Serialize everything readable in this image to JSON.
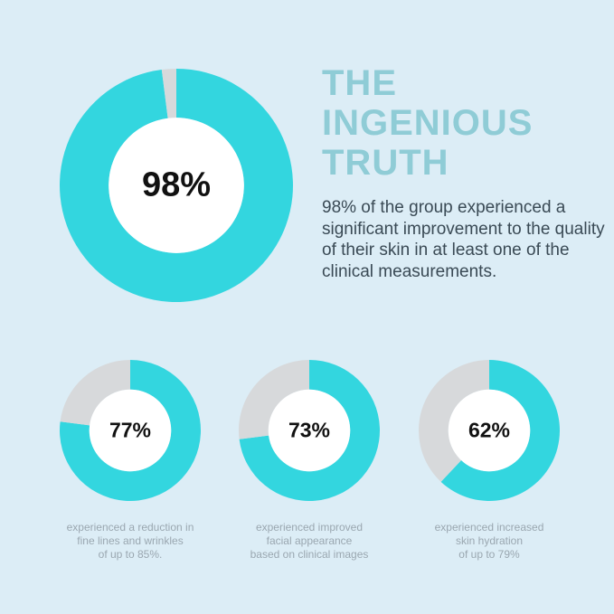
{
  "headline": {
    "lines": [
      "THE",
      "INGENIOUS",
      "TRUTH"
    ]
  },
  "description": "98% of the group experienced a significant improvement to the quality of their skin in at least one of the clinical measurements.",
  "colors": {
    "filled": "#33d6df",
    "remainder": "#d7d9db",
    "center": "#ffffff",
    "background": "#dcedf6",
    "headline": "#8fccd6"
  },
  "chart_data": [
    {
      "type": "pie",
      "style": "donut",
      "slices": [
        {
          "value": 98,
          "color": "#33d6df"
        },
        {
          "value": 2,
          "color": "#d7d9db"
        }
      ],
      "label": "98%"
    },
    {
      "type": "pie",
      "style": "donut",
      "slices": [
        {
          "value": 77,
          "color": "#33d6df"
        },
        {
          "value": 23,
          "color": "#d7d9db"
        }
      ],
      "label": "77%",
      "caption": [
        "experienced a reduction in",
        "fine lines and wrinkles",
        "of up to 85%."
      ]
    },
    {
      "type": "pie",
      "style": "donut",
      "slices": [
        {
          "value": 73,
          "color": "#33d6df"
        },
        {
          "value": 27,
          "color": "#d7d9db"
        }
      ],
      "label": "73%",
      "caption": [
        "experienced improved",
        "facial appearance",
        "based on clinical images"
      ]
    },
    {
      "type": "pie",
      "style": "donut",
      "slices": [
        {
          "value": 62,
          "color": "#33d6df"
        },
        {
          "value": 38,
          "color": "#d7d9db"
        }
      ],
      "label": "62%",
      "caption": [
        "experienced increased",
        "skin hydration",
        "of up to 79%"
      ]
    }
  ]
}
